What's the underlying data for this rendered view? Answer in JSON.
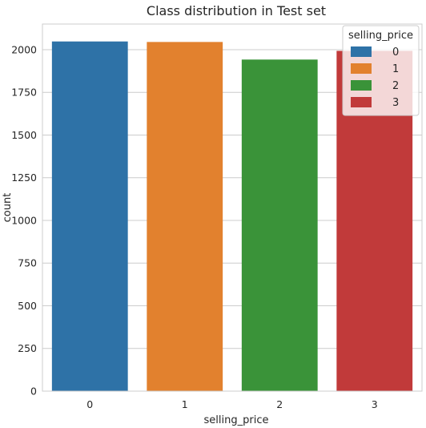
{
  "chart_data": {
    "type": "bar",
    "title": "Class distribution in Test set",
    "xlabel": "selling_price",
    "ylabel": "count",
    "categories": [
      "0",
      "1",
      "2",
      "3"
    ],
    "values": [
      2048,
      2045,
      1942,
      1993
    ],
    "colors": [
      "#2e72a7",
      "#e2812e",
      "#3a9339",
      "#c13a3a"
    ],
    "ylim": [
      0,
      2150
    ],
    "yticks": [
      0,
      250,
      500,
      750,
      1000,
      1250,
      1500,
      1750,
      2000
    ],
    "grid": "horizontal",
    "legend": {
      "title": "selling_price",
      "placement": "top-right",
      "entries": [
        "0",
        "1",
        "2",
        "3"
      ]
    }
  }
}
